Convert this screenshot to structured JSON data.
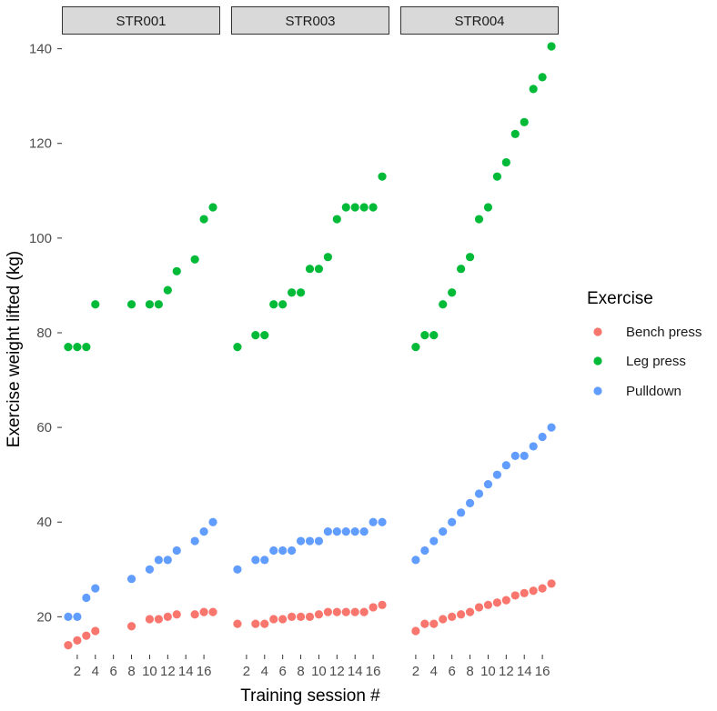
{
  "chart_data": {
    "type": "scatter",
    "xlabel": "Training session #",
    "ylabel": "Exercise weight lifted (kg)",
    "xlim": [
      0.3,
      17.8
    ],
    "ylim": [
      12,
      143
    ],
    "x_ticks": [
      "2",
      "4",
      "6",
      "8",
      "10",
      "12",
      "14",
      "16"
    ],
    "y_ticks": [
      "20",
      "40",
      "60",
      "80",
      "100",
      "120",
      "140"
    ],
    "grid": false,
    "legend": {
      "title": "Exercise",
      "position": "right",
      "entries": [
        "Bench press",
        "Leg press",
        "Pulldown"
      ]
    },
    "colors": {
      "Bench press": "#F8766D",
      "Leg press": "#00BA38",
      "Pulldown": "#619CFF"
    },
    "panels": [
      {
        "name": "STR001",
        "series": [
          {
            "name": "Bench press",
            "points": [
              [
                1,
                14
              ],
              [
                2,
                15
              ],
              [
                3,
                16
              ],
              [
                4,
                17
              ],
              [
                8,
                18
              ],
              [
                10,
                19.5
              ],
              [
                11,
                19.5
              ],
              [
                12,
                20
              ],
              [
                13,
                20.5
              ],
              [
                15,
                20.5
              ],
              [
                16,
                21
              ],
              [
                17,
                21
              ]
            ]
          },
          {
            "name": "Leg press",
            "points": [
              [
                1,
                77
              ],
              [
                2,
                77
              ],
              [
                3,
                77
              ],
              [
                4,
                86
              ],
              [
                8,
                86
              ],
              [
                10,
                86
              ],
              [
                11,
                86
              ],
              [
                12,
                89
              ],
              [
                13,
                93
              ],
              [
                15,
                95.5
              ],
              [
                16,
                104
              ],
              [
                17,
                106.5
              ]
            ]
          },
          {
            "name": "Pulldown",
            "points": [
              [
                1,
                20
              ],
              [
                2,
                20
              ],
              [
                3,
                24
              ],
              [
                4,
                26
              ],
              [
                8,
                28
              ],
              [
                10,
                30
              ],
              [
                11,
                32
              ],
              [
                12,
                32
              ],
              [
                13,
                34
              ],
              [
                15,
                36
              ],
              [
                16,
                38
              ],
              [
                17,
                40
              ]
            ]
          }
        ]
      },
      {
        "name": "STR003",
        "series": [
          {
            "name": "Bench press",
            "points": [
              [
                1,
                18.5
              ],
              [
                3,
                18.5
              ],
              [
                4,
                18.5
              ],
              [
                5,
                19.5
              ],
              [
                6,
                19.5
              ],
              [
                7,
                20
              ],
              [
                8,
                20
              ],
              [
                9,
                20
              ],
              [
                10,
                20.5
              ],
              [
                11,
                21
              ],
              [
                12,
                21
              ],
              [
                13,
                21
              ],
              [
                14,
                21
              ],
              [
                15,
                21
              ],
              [
                16,
                22
              ],
              [
                17,
                22.5
              ]
            ]
          },
          {
            "name": "Leg press",
            "points": [
              [
                1,
                77
              ],
              [
                3,
                79.5
              ],
              [
                4,
                79.5
              ],
              [
                5,
                86
              ],
              [
                6,
                86
              ],
              [
                7,
                88.5
              ],
              [
                8,
                88.5
              ],
              [
                9,
                93.5
              ],
              [
                10,
                93.5
              ],
              [
                11,
                96
              ],
              [
                12,
                104
              ],
              [
                13,
                106.5
              ],
              [
                14,
                106.5
              ],
              [
                15,
                106.5
              ],
              [
                16,
                106.5
              ],
              [
                17,
                113
              ]
            ]
          },
          {
            "name": "Pulldown",
            "points": [
              [
                1,
                30
              ],
              [
                3,
                32
              ],
              [
                4,
                32
              ],
              [
                5,
                34
              ],
              [
                6,
                34
              ],
              [
                7,
                34
              ],
              [
                8,
                36
              ],
              [
                9,
                36
              ],
              [
                10,
                36
              ],
              [
                11,
                38
              ],
              [
                12,
                38
              ],
              [
                13,
                38
              ],
              [
                14,
                38
              ],
              [
                15,
                38
              ],
              [
                16,
                40
              ],
              [
                17,
                40
              ]
            ]
          }
        ]
      },
      {
        "name": "STR004",
        "series": [
          {
            "name": "Bench press",
            "points": [
              [
                2,
                17
              ],
              [
                3,
                18.5
              ],
              [
                4,
                18.5
              ],
              [
                5,
                19.5
              ],
              [
                6,
                20
              ],
              [
                7,
                20.5
              ],
              [
                8,
                21
              ],
              [
                9,
                22
              ],
              [
                10,
                22.5
              ],
              [
                11,
                23
              ],
              [
                12,
                23.5
              ],
              [
                13,
                24.5
              ],
              [
                14,
                25
              ],
              [
                15,
                25.5
              ],
              [
                16,
                26
              ],
              [
                17,
                27
              ]
            ]
          },
          {
            "name": "Leg press",
            "points": [
              [
                2,
                77
              ],
              [
                3,
                79.5
              ],
              [
                4,
                79.5
              ],
              [
                5,
                86
              ],
              [
                6,
                88.5
              ],
              [
                7,
                93.5
              ],
              [
                8,
                96
              ],
              [
                9,
                104
              ],
              [
                10,
                106.5
              ],
              [
                11,
                113
              ],
              [
                12,
                116
              ],
              [
                13,
                122
              ],
              [
                14,
                124.5
              ],
              [
                15,
                131.5
              ],
              [
                16,
                134
              ],
              [
                17,
                140.5
              ]
            ]
          },
          {
            "name": "Pulldown",
            "points": [
              [
                2,
                32
              ],
              [
                3,
                34
              ],
              [
                4,
                36
              ],
              [
                5,
                38
              ],
              [
                6,
                40
              ],
              [
                7,
                42
              ],
              [
                8,
                44
              ],
              [
                9,
                46
              ],
              [
                10,
                48
              ],
              [
                11,
                50
              ],
              [
                12,
                52
              ],
              [
                13,
                54
              ],
              [
                14,
                54
              ],
              [
                15,
                56
              ],
              [
                16,
                58
              ],
              [
                17,
                60
              ]
            ]
          }
        ]
      }
    ]
  }
}
